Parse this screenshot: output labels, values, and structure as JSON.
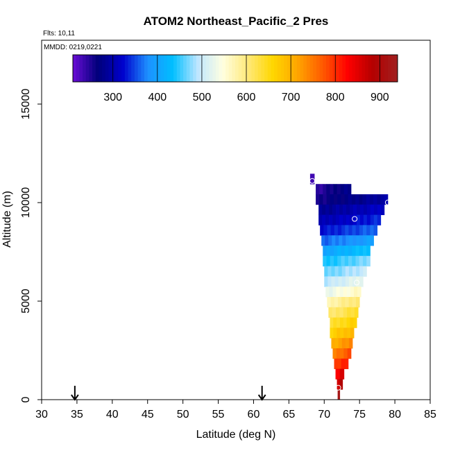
{
  "chart_data": {
    "type": "heatmap",
    "title": "ATOM2 Northeast_Pacific_2 Pres",
    "flights_label": "Flts: 10,11",
    "dates_label": "MMDD: 0219,0221",
    "xlabel": "Latitude (deg N)",
    "ylabel": "Altitude (m)",
    "xlim": [
      30,
      85
    ],
    "ylim": [
      0,
      17500
    ],
    "x_ticks": [
      "30",
      "35",
      "40",
      "45",
      "50",
      "55",
      "60",
      "65",
      "70",
      "75",
      "80",
      "85"
    ],
    "y_ticks": [
      "0",
      "5000",
      "10000",
      "15000"
    ],
    "colorbar": {
      "range": [
        210,
        940
      ],
      "ticks": [
        "300",
        "400",
        "500",
        "600",
        "700",
        "800",
        "900"
      ],
      "colors": [
        "#6a0dd6",
        "#00007a",
        "#0000cc",
        "#1e90ff",
        "#00bfff",
        "#bfe6ff",
        "#ffffe0",
        "#ffe97a",
        "#ffd700",
        "#ffa500",
        "#ff5a00",
        "#ff0000",
        "#b40000",
        "#a02020"
      ]
    },
    "arrow_latitudes": [
      34.7,
      61.2
    ],
    "bins": [
      {
        "alt": 10750,
        "lat_min": 68.0,
        "lat_max": 68.6,
        "value": 240
      },
      {
        "alt": 10250,
        "lat_min": 68.8,
        "lat_max": 73.8,
        "value": 260
      },
      {
        "alt": 9750,
        "lat_min": 68.8,
        "lat_max": 79.0,
        "value": 275
      },
      {
        "alt": 9250,
        "lat_min": 69.2,
        "lat_max": 78.5,
        "value": 300
      },
      {
        "alt": 8750,
        "lat_min": 69.2,
        "lat_max": 78.0,
        "value": 320
      },
      {
        "alt": 8250,
        "lat_min": 69.4,
        "lat_max": 77.5,
        "value": 345
      },
      {
        "alt": 7750,
        "lat_min": 69.6,
        "lat_max": 77.0,
        "value": 380
      },
      {
        "alt": 7250,
        "lat_min": 69.8,
        "lat_max": 76.5,
        "value": 420
      },
      {
        "alt": 6750,
        "lat_min": 69.8,
        "lat_max": 76.5,
        "value": 455
      },
      {
        "alt": 6250,
        "lat_min": 70.0,
        "lat_max": 76.0,
        "value": 480
      },
      {
        "alt": 5750,
        "lat_min": 70.0,
        "lat_max": 75.5,
        "value": 510
      },
      {
        "alt": 5250,
        "lat_min": 70.2,
        "lat_max": 75.2,
        "value": 545
      },
      {
        "alt": 4750,
        "lat_min": 70.4,
        "lat_max": 75.0,
        "value": 590
      },
      {
        "alt": 4250,
        "lat_min": 70.6,
        "lat_max": 74.8,
        "value": 620
      },
      {
        "alt": 3750,
        "lat_min": 70.8,
        "lat_max": 74.6,
        "value": 650
      },
      {
        "alt": 3250,
        "lat_min": 70.8,
        "lat_max": 74.2,
        "value": 680
      },
      {
        "alt": 2750,
        "lat_min": 71.0,
        "lat_max": 74.0,
        "value": 720
      },
      {
        "alt": 2250,
        "lat_min": 71.2,
        "lat_max": 73.8,
        "value": 760
      },
      {
        "alt": 1750,
        "lat_min": 71.4,
        "lat_max": 73.4,
        "value": 800
      },
      {
        "alt": 1250,
        "lat_min": 71.6,
        "lat_max": 72.8,
        "value": 840
      },
      {
        "alt": 750,
        "lat_min": 71.8,
        "lat_max": 72.6,
        "value": 880
      },
      {
        "alt": 250,
        "lat_min": 71.9,
        "lat_max": 72.2,
        "value": 920
      }
    ],
    "points": [
      {
        "lat": 68.3,
        "alt": 10650
      },
      {
        "lat": 79.0,
        "alt": 9600
      },
      {
        "lat": 74.3,
        "alt": 8800
      },
      {
        "lat": 74.6,
        "alt": 5700
      },
      {
        "lat": 72.0,
        "alt": 580
      }
    ]
  }
}
